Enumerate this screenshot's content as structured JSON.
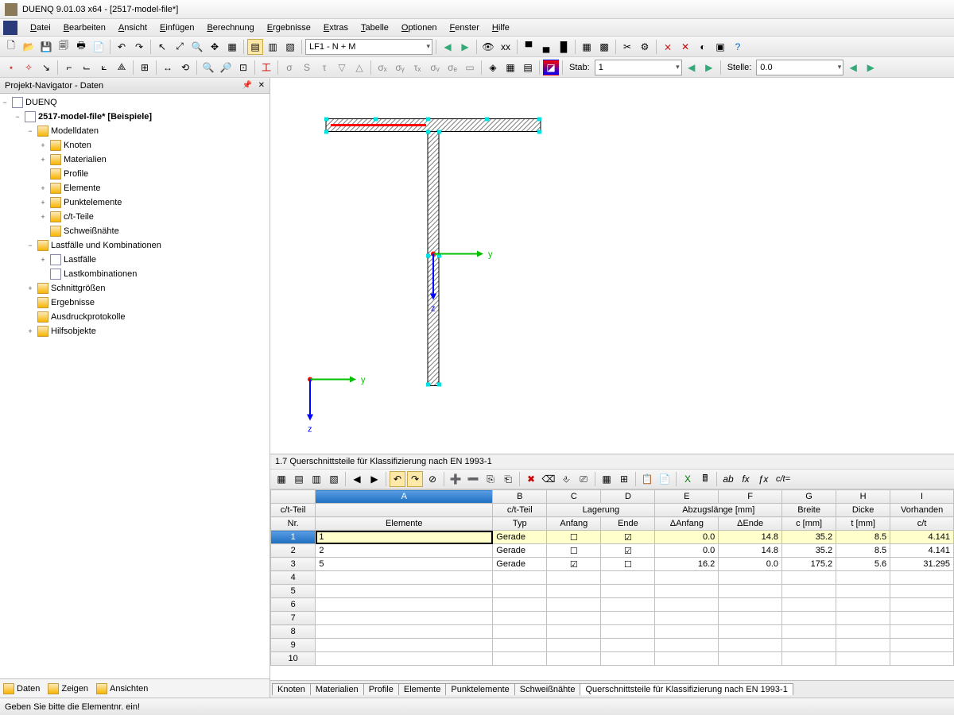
{
  "window": {
    "title": "DUENQ 9.01.03 x64 - [2517-model-file*]"
  },
  "menu": [
    "Datei",
    "Bearbeiten",
    "Ansicht",
    "Einfügen",
    "Berechnung",
    "Ergebnisse",
    "Extras",
    "Tabelle",
    "Optionen",
    "Fenster",
    "Hilfe"
  ],
  "toolbar1": {
    "combo": "LF1 - N + M"
  },
  "toolbar2": {
    "stab_label": "Stab:",
    "stab_value": "1",
    "stelle_label": "Stelle:",
    "stelle_value": "0.0"
  },
  "navigator": {
    "title": "Projekt-Navigator - Daten",
    "root": "DUENQ",
    "file": "2517-model-file* [Beispiele]",
    "tree": [
      {
        "label": "Modelldaten",
        "indent": 2,
        "toggle": "−",
        "icon": "fld",
        "children": [
          {
            "label": "Knoten",
            "indent": 3,
            "toggle": "+",
            "icon": "fld"
          },
          {
            "label": "Materialien",
            "indent": 3,
            "toggle": "+",
            "icon": "fld"
          },
          {
            "label": "Profile",
            "indent": 3,
            "toggle": "",
            "icon": "fld"
          },
          {
            "label": "Elemente",
            "indent": 3,
            "toggle": "+",
            "icon": "fld"
          },
          {
            "label": "Punktelemente",
            "indent": 3,
            "toggle": "+",
            "icon": "fld"
          },
          {
            "label": "c/t-Teile",
            "indent": 3,
            "toggle": "+",
            "icon": "fld"
          },
          {
            "label": "Schweißnähte",
            "indent": 3,
            "toggle": "",
            "icon": "fld"
          }
        ]
      },
      {
        "label": "Lastfälle und Kombinationen",
        "indent": 2,
        "toggle": "−",
        "icon": "fld",
        "children": [
          {
            "label": "Lastfälle",
            "indent": 3,
            "toggle": "+",
            "icon": "fil"
          },
          {
            "label": "Lastkombinationen",
            "indent": 3,
            "toggle": "",
            "icon": "fil"
          }
        ]
      },
      {
        "label": "Schnittgrößen",
        "indent": 2,
        "toggle": "+",
        "icon": "fld"
      },
      {
        "label": "Ergebnisse",
        "indent": 2,
        "toggle": "",
        "icon": "fld"
      },
      {
        "label": "Ausdruckprotokolle",
        "indent": 2,
        "toggle": "",
        "icon": "fld"
      },
      {
        "label": "Hilfsobjekte",
        "indent": 2,
        "toggle": "+",
        "icon": "fld"
      }
    ],
    "tabs": [
      "Daten",
      "Zeigen",
      "Ansichten"
    ]
  },
  "viewport": {
    "axis_labels": {
      "y": "y",
      "z": "z"
    },
    "colors": {
      "section_hatch": "#808080",
      "section_outline": "#000000",
      "handle": "#00e0e0",
      "highlight": "#ff0000",
      "axis_y": "#00c000",
      "axis_z": "#0000ff",
      "origin": "#ff0000",
      "bg": "#ffffff"
    }
  },
  "table": {
    "title": "1.7 Querschnittsteile für Klassifizierung nach EN 1993-1",
    "col_letters": [
      "A",
      "B",
      "C",
      "D",
      "E",
      "F",
      "G",
      "H",
      "I"
    ],
    "headers_r1": [
      "c/t-Teil",
      "",
      "c/t-Teil",
      "Lagerung",
      "Lagerung",
      "Abzugslänge [mm]",
      "Abzugslänge [mm]",
      "Breite",
      "Dicke",
      "Vorhanden"
    ],
    "headers_r2": [
      "Nr.",
      "Elemente",
      "Typ",
      "Anfang",
      "Ende",
      "ΔAnfang",
      "ΔEnde",
      "c [mm]",
      "t [mm]",
      "c/t"
    ],
    "rows": [
      {
        "nr": "1",
        "elemente": "1",
        "typ": "Gerade",
        "anfang": false,
        "ende": true,
        "danf": "0.0",
        "dende": "14.8",
        "c": "35.2",
        "t": "8.5",
        "ct": "4.141",
        "sel": true,
        "editing": true
      },
      {
        "nr": "2",
        "elemente": "2",
        "typ": "Gerade",
        "anfang": false,
        "ende": true,
        "danf": "0.0",
        "dende": "14.8",
        "c": "35.2",
        "t": "8.5",
        "ct": "4.141"
      },
      {
        "nr": "3",
        "elemente": "5",
        "typ": "Gerade",
        "anfang": true,
        "ende": false,
        "danf": "16.2",
        "dende": "0.0",
        "c": "175.2",
        "t": "5.6",
        "ct": "31.295"
      },
      {
        "nr": "4"
      },
      {
        "nr": "5"
      },
      {
        "nr": "6"
      },
      {
        "nr": "7"
      },
      {
        "nr": "8"
      },
      {
        "nr": "9"
      },
      {
        "nr": "10"
      }
    ],
    "tabs": [
      "Knoten",
      "Materialien",
      "Profile",
      "Elemente",
      "Punktelemente",
      "Schweißnähte",
      "Querschnittsteile für Klassifizierung nach EN 1993-1"
    ],
    "active_tab": 6,
    "formula_label": "c/t="
  },
  "status": {
    "text": "Geben Sie bitte die Elementnr. ein!"
  }
}
